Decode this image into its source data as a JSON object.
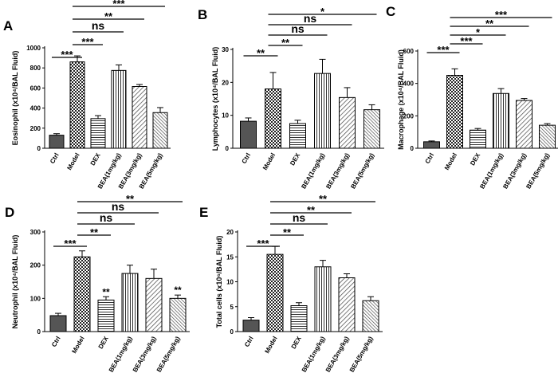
{
  "chart_data": [
    {
      "panel": "A",
      "type": "bar",
      "ylabel": "Eosinophil (x10⁴/BAL Fluid)",
      "ylim": [
        0,
        1000
      ],
      "yticks": [
        "0",
        "200",
        "400",
        "600",
        "800",
        "1000"
      ],
      "categories": [
        "Ctrl",
        "Model",
        "DEX",
        "BEA(1mg/kg)",
        "BEA(3mg/kg)",
        "BEA(5mg/kg)"
      ],
      "values": [
        130,
        860,
        295,
        775,
        615,
        355
      ],
      "errors": [
        15,
        60,
        30,
        55,
        20,
        50
      ],
      "bar_annotations": [],
      "comparisons": [
        {
          "from": 0,
          "to": 1,
          "label": "***"
        },
        {
          "from": 1,
          "to": 2,
          "label": "***"
        },
        {
          "from": 1,
          "to": 3,
          "label": "ns"
        },
        {
          "from": 1,
          "to": 4,
          "label": "**"
        },
        {
          "from": 1,
          "to": 5,
          "label": "***"
        }
      ]
    },
    {
      "panel": "B",
      "type": "bar",
      "ylabel": "Lymphocytes (x10⁴/BAL Fluid)",
      "ylim": [
        0,
        30
      ],
      "yticks": [
        "0",
        "10",
        "20",
        "30"
      ],
      "categories": [
        "Ctrl",
        "Model",
        "DEX",
        "BEA(1mg/kg)",
        "BEA(3mg/kg)",
        "BEA(5mg/kg)"
      ],
      "values": [
        8.2,
        18.0,
        7.5,
        22.7,
        15.4,
        11.7
      ],
      "errors": [
        1.0,
        5.0,
        1.0,
        4.3,
        3.0,
        1.5
      ],
      "bar_annotations": [],
      "comparisons": [
        {
          "from": 0,
          "to": 1,
          "label": "**"
        },
        {
          "from": 1,
          "to": 2,
          "label": "**"
        },
        {
          "from": 1,
          "to": 3,
          "label": "ns"
        },
        {
          "from": 1,
          "to": 4,
          "label": "ns"
        },
        {
          "from": 1,
          "to": 5,
          "label": "*"
        }
      ]
    },
    {
      "panel": "C",
      "type": "bar",
      "ylabel": "Macrophage (x10⁴/BAL Fluid)",
      "ylim": [
        0,
        600
      ],
      "yticks": [
        "0",
        "200",
        "400",
        "600"
      ],
      "categories": [
        "Ctrl",
        "Model",
        "DEX",
        "BEA(1mg/kg)",
        "BEA(3mg/kg)",
        "BEA(5mg/kg)"
      ],
      "values": [
        40,
        450,
        112,
        338,
        295,
        142
      ],
      "errors": [
        5,
        40,
        10,
        30,
        12,
        10
      ],
      "bar_annotations": [],
      "comparisons": [
        {
          "from": 0,
          "to": 1,
          "label": "***"
        },
        {
          "from": 1,
          "to": 2,
          "label": "***"
        },
        {
          "from": 1,
          "to": 3,
          "label": "*"
        },
        {
          "from": 1,
          "to": 4,
          "label": "**"
        },
        {
          "from": 1,
          "to": 5,
          "label": "***"
        }
      ]
    },
    {
      "panel": "D",
      "type": "bar",
      "ylabel": "Neutrophil (x10⁴/BAL Fluid)",
      "ylim": [
        0,
        300
      ],
      "yticks": [
        "0",
        "100",
        "200",
        "300"
      ],
      "categories": [
        "Ctrl",
        "Model",
        "DEX",
        "BEA(1mg/kg)",
        "BEA(3mg/kg)",
        "BEA(5mg/kg)"
      ],
      "values": [
        48,
        225,
        95,
        175,
        160,
        100
      ],
      "errors": [
        7,
        18,
        10,
        25,
        28,
        10
      ],
      "bar_annotations": [
        "",
        "",
        "**",
        "",
        "",
        "**"
      ],
      "comparisons": [
        {
          "from": 0,
          "to": 1,
          "label": "***"
        },
        {
          "from": 1,
          "to": 2,
          "label": "**"
        },
        {
          "from": 1,
          "to": 3,
          "label": "ns"
        },
        {
          "from": 1,
          "to": 4,
          "label": "ns"
        },
        {
          "from": 1,
          "to": 5,
          "label": "**"
        }
      ]
    },
    {
      "panel": "E",
      "type": "bar",
      "ylabel": "Total cells (x10⁶/BAL Fluid)",
      "ylim": [
        0,
        20
      ],
      "yticks": [
        "0",
        "5",
        "10",
        "15",
        "20"
      ],
      "categories": [
        "Ctrl",
        "Model",
        "DEX",
        "BEA(1mg/kg)",
        "BEA(3mg/kg)",
        "BEA(5mg/kg)"
      ],
      "values": [
        2.3,
        15.5,
        5.2,
        13.0,
        10.8,
        6.2
      ],
      "errors": [
        0.5,
        1.6,
        0.6,
        1.3,
        0.8,
        0.8
      ],
      "bar_annotations": [],
      "comparisons": [
        {
          "from": 0,
          "to": 1,
          "label": "***"
        },
        {
          "from": 1,
          "to": 2,
          "label": "**"
        },
        {
          "from": 1,
          "to": 3,
          "label": "ns"
        },
        {
          "from": 1,
          "to": 4,
          "label": "**"
        },
        {
          "from": 1,
          "to": 5,
          "label": "**"
        }
      ]
    }
  ]
}
